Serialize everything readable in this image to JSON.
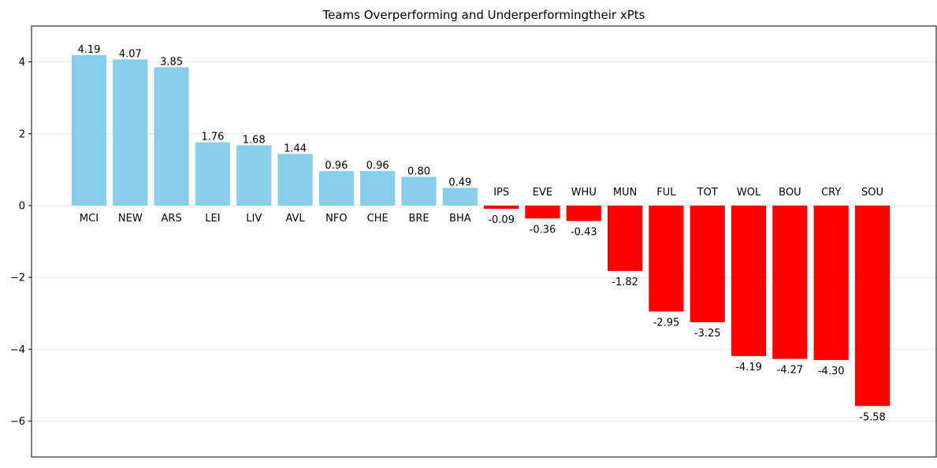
{
  "chart_data": {
    "type": "bar",
    "title": "Teams Overperforming and Underperformingtheir xPts",
    "xlabel": "",
    "ylabel": "",
    "categories": [
      "MCI",
      "NEW",
      "ARS",
      "LEI",
      "LIV",
      "AVL",
      "NFO",
      "CHE",
      "BRE",
      "BHA",
      "IPS",
      "EVE",
      "WHU",
      "MUN",
      "FUL",
      "TOT",
      "WOL",
      "BOU",
      "CRY",
      "SOU"
    ],
    "values": [
      4.19,
      4.07,
      3.85,
      1.76,
      1.68,
      1.44,
      0.96,
      0.96,
      0.8,
      0.49,
      -0.09,
      -0.36,
      -0.43,
      -1.82,
      -2.95,
      -3.25,
      -4.19,
      -4.27,
      -4.3,
      -5.58
    ],
    "value_labels": [
      "4.19",
      "4.07",
      "3.85",
      "1.76",
      "1.68",
      "1.44",
      "0.96",
      "0.96",
      "0.80",
      "0.49",
      "-0.09",
      "-0.36",
      "-0.43",
      "-1.82",
      "-2.95",
      "-3.25",
      "-4.19",
      "-4.27",
      "-4.30",
      "-5.58"
    ],
    "ylim": [
      -7,
      5
    ],
    "yticks": [
      4,
      2,
      0,
      -2,
      -4,
      -6
    ],
    "ytick_labels": [
      "4",
      "2",
      "0",
      "−2",
      "−4",
      "−6"
    ],
    "grid": "horizontal",
    "colors": {
      "positive": "#87CEEB",
      "negative": "#FF0000",
      "grid": "#e6e6e6",
      "axis": "#000000"
    }
  }
}
